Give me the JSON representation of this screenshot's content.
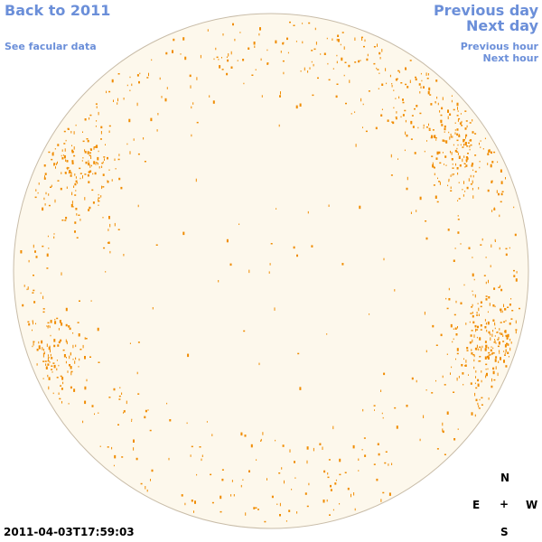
{
  "nav": {
    "back_label": "Back to 2011",
    "facular_label": "See facular data",
    "prev_day_label": "Previous day",
    "next_day_label": "Next day",
    "prev_hour_label": "Previous hour",
    "next_hour_label": "Next hour"
  },
  "compass": {
    "north": "N",
    "east": "E",
    "center": "+",
    "west": "W",
    "south": "S"
  },
  "timestamp": "2011-04-03T17:59:03",
  "colors": {
    "link": "#6b8fd9",
    "disk_fill": "#fdf8ec",
    "disk_edge": "#c8bca8",
    "facula": "#f08c00"
  }
}
